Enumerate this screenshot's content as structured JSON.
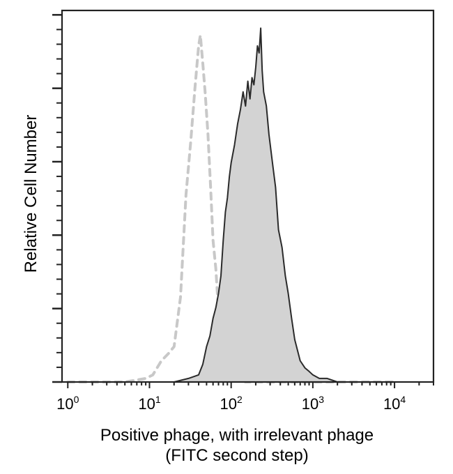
{
  "chart_data": {
    "type": "area",
    "xlabel_line1": "Positive phage, with irrelevant phage",
    "xlabel_line2": "(FITC second step)",
    "ylabel": "Relative Cell Number",
    "x_scale": "log",
    "xlim": [
      0.85,
      30000
    ],
    "ylim": [
      0,
      1.05
    ],
    "x_ticks": [
      {
        "base": "10",
        "exp": "0",
        "value": 1
      },
      {
        "base": "10",
        "exp": "1",
        "value": 10
      },
      {
        "base": "10",
        "exp": "2",
        "value": 100
      },
      {
        "base": "10",
        "exp": "3",
        "value": 1000
      },
      {
        "base": "10",
        "exp": "4",
        "value": 10000
      }
    ],
    "grid": false,
    "legend": "none",
    "series": [
      {
        "style": "dashed",
        "color": "#c8c8c8",
        "x": [
          1,
          5,
          9,
          11,
          14,
          17,
          20,
          24,
          28,
          32,
          36,
          40,
          42,
          45,
          48,
          52,
          56,
          60,
          65,
          70,
          75,
          80,
          90,
          100,
          120,
          150,
          200,
          1000,
          10000
        ],
        "y": [
          0.0,
          0.0,
          0.01,
          0.02,
          0.06,
          0.08,
          0.1,
          0.24,
          0.53,
          0.68,
          0.83,
          0.95,
          0.98,
          0.9,
          0.82,
          0.7,
          0.55,
          0.4,
          0.32,
          0.2,
          0.1,
          0.05,
          0.03,
          0.01,
          0.01,
          0.0,
          0.0,
          0.0,
          0.0
        ]
      },
      {
        "style": "solid-filled",
        "color": "#2a2a2a",
        "fill": "#d3d3d3",
        "x": [
          1,
          10,
          20,
          30,
          40,
          45,
          50,
          55,
          60,
          65,
          70,
          75,
          80,
          85,
          90,
          95,
          100,
          110,
          120,
          130,
          140,
          150,
          160,
          170,
          180,
          190,
          200,
          210,
          220,
          230,
          240,
          250,
          270,
          290,
          320,
          350,
          380,
          420,
          460,
          500,
          550,
          600,
          700,
          800,
          900,
          1000,
          1200,
          1500,
          2000,
          2500,
          5000,
          30000
        ],
        "y": [
          0.0,
          0.0,
          0.0,
          0.01,
          0.02,
          0.05,
          0.1,
          0.13,
          0.18,
          0.21,
          0.25,
          0.3,
          0.4,
          0.48,
          0.52,
          0.58,
          0.62,
          0.67,
          0.73,
          0.77,
          0.82,
          0.78,
          0.85,
          0.8,
          0.86,
          0.84,
          0.89,
          0.95,
          0.93,
          1.0,
          0.88,
          0.82,
          0.78,
          0.7,
          0.62,
          0.55,
          0.43,
          0.38,
          0.3,
          0.25,
          0.18,
          0.12,
          0.06,
          0.04,
          0.03,
          0.02,
          0.01,
          0.01,
          0.0,
          0.0,
          0.0,
          0.0
        ]
      }
    ]
  }
}
